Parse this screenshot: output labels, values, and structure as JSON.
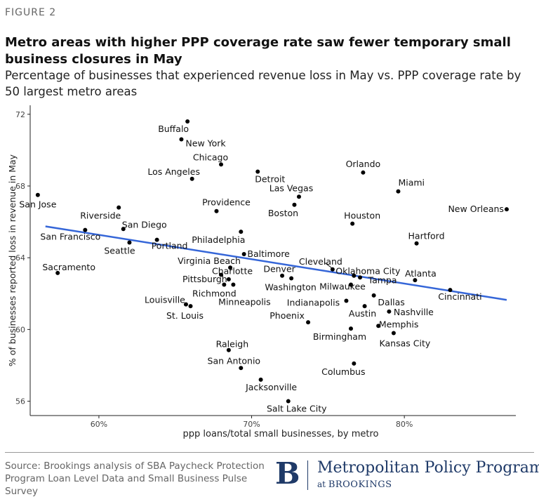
{
  "figure_label": "FIGURE 2",
  "title": "Metro areas with higher PPP coverage rate saw fewer temporary small business closures in May",
  "subtitle": "Percentage of businesses that experienced revenue loss in May vs. PPP coverage rate by 50 largest metro areas",
  "source": "Source: Brookings analysis of SBA Paycheck Protection Program Loan Level Data and Small Business Pulse Survey",
  "logo": {
    "mark": "B",
    "name": "Metropolitan Policy Program",
    "at": "at",
    "org": "BROOKINGS"
  },
  "colors": {
    "trend_line": "#3566d8",
    "points": "#000000"
  },
  "chart_data": {
    "type": "scatter",
    "xlabel": "ppp loans/total small businesses, by metro",
    "ylabel": "% of businesses reported loss in revenue in May",
    "xlim": [
      0.555,
      0.873
    ],
    "ylim": [
      55.2,
      72.5
    ],
    "x_ticks": [
      0.6,
      0.7,
      0.8
    ],
    "x_tick_labels": [
      "60%",
      "70%",
      "80%"
    ],
    "y_ticks": [
      56,
      60,
      64,
      68,
      72
    ],
    "y_tick_labels": [
      "56",
      "60",
      "64",
      "68",
      "72"
    ],
    "grid": false,
    "trend_line": {
      "x": [
        0.565,
        0.867
      ],
      "y": [
        65.75,
        61.65
      ]
    },
    "points": [
      {
        "label": "Buffalo",
        "x": 0.658,
        "y": 71.6
      },
      {
        "label": "New York",
        "x": 0.654,
        "y": 70.6
      },
      {
        "label": "Chicago",
        "x": 0.68,
        "y": 69.2
      },
      {
        "label": "Los Angeles",
        "x": 0.661,
        "y": 68.4
      },
      {
        "label": "Detroit",
        "x": 0.704,
        "y": 68.8
      },
      {
        "label": "Orlando",
        "x": 0.773,
        "y": 68.75
      },
      {
        "label": "San Jose",
        "x": 0.56,
        "y": 67.5
      },
      {
        "label": "Miami",
        "x": 0.796,
        "y": 67.7
      },
      {
        "label": "Las Vegas",
        "x": 0.731,
        "y": 67.4
      },
      {
        "label": "Riverside",
        "x": 0.613,
        "y": 66.8
      },
      {
        "label": "Providence",
        "x": 0.677,
        "y": 66.6
      },
      {
        "label": "Boston",
        "x": 0.728,
        "y": 66.95
      },
      {
        "label": "New Orleans",
        "x": 0.867,
        "y": 66.7
      },
      {
        "label": "Houston",
        "x": 0.766,
        "y": 65.9
      },
      {
        "label": "San Diego",
        "x": 0.616,
        "y": 65.6
      },
      {
        "label": "San Francisco",
        "x": 0.591,
        "y": 65.55
      },
      {
        "label": "Philadelphia",
        "x": 0.693,
        "y": 65.45
      },
      {
        "label": "Hartford",
        "x": 0.808,
        "y": 64.8
      },
      {
        "label": "Seattle",
        "x": 0.62,
        "y": 64.85
      },
      {
        "label": "Portland",
        "x": 0.638,
        "y": 65.0
      },
      {
        "label": "Baltimore",
        "x": 0.695,
        "y": 64.2
      },
      {
        "label": "Virginia Beach",
        "x": 0.686,
        "y": 63.45
      },
      {
        "label": "Cleveland",
        "x": 0.753,
        "y": 63.35
      },
      {
        "label": "Sacramento",
        "x": 0.573,
        "y": 63.15
      },
      {
        "label": "Charlotte",
        "x": 0.68,
        "y": 63.05
      },
      {
        "label": "Denver",
        "x": 0.72,
        "y": 63.0
      },
      {
        "label": "Pittsburgh",
        "x": 0.685,
        "y": 62.8
      },
      {
        "label": "Washington",
        "x": 0.726,
        "y": 62.85
      },
      {
        "label": "Oklahoma City",
        "x": 0.767,
        "y": 63.0
      },
      {
        "label": "Tampa",
        "x": 0.771,
        "y": 62.9
      },
      {
        "label": "Atlanta",
        "x": 0.807,
        "y": 62.75
      },
      {
        "label": "Richmond",
        "x": 0.682,
        "y": 62.5
      },
      {
        "label": "Milwaukee",
        "x": 0.765,
        "y": 62.5
      },
      {
        "label": "Minneapolis",
        "x": 0.688,
        "y": 62.5
      },
      {
        "label": "Cincinnati",
        "x": 0.83,
        "y": 62.2
      },
      {
        "label": "Dallas",
        "x": 0.78,
        "y": 61.9
      },
      {
        "label": "Indianapolis",
        "x": 0.762,
        "y": 61.6
      },
      {
        "label": "Louisville",
        "x": 0.657,
        "y": 61.4
      },
      {
        "label": "St. Louis",
        "x": 0.66,
        "y": 61.3
      },
      {
        "label": "Austin",
        "x": 0.774,
        "y": 61.3
      },
      {
        "label": "Nashville",
        "x": 0.79,
        "y": 61.0
      },
      {
        "label": "Phoenix",
        "x": 0.737,
        "y": 60.4
      },
      {
        "label": "Memphis",
        "x": 0.783,
        "y": 60.2
      },
      {
        "label": "Birmingham",
        "x": 0.765,
        "y": 60.05
      },
      {
        "label": "Kansas City",
        "x": 0.793,
        "y": 59.8
      },
      {
        "label": "Raleigh",
        "x": 0.685,
        "y": 58.85
      },
      {
        "label": "Columbus",
        "x": 0.767,
        "y": 58.1
      },
      {
        "label": "San Antonio",
        "x": 0.693,
        "y": 57.85
      },
      {
        "label": "Jacksonville",
        "x": 0.706,
        "y": 57.2
      },
      {
        "label": "Salt Lake City",
        "x": 0.724,
        "y": 56.0
      }
    ]
  }
}
